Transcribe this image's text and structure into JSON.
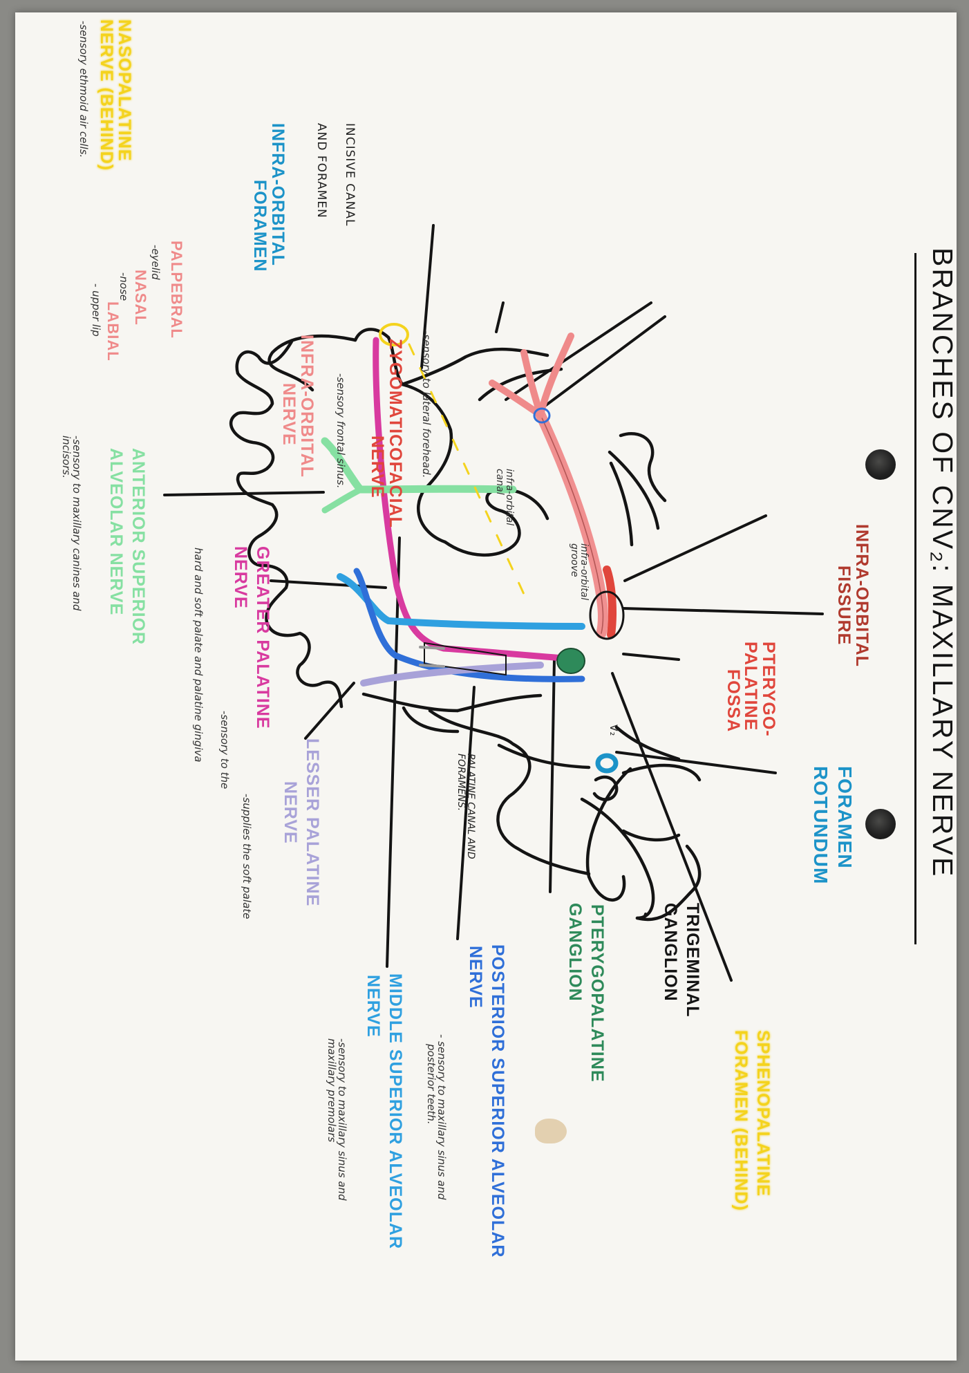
{
  "title": "BRANCHES OF CNV₂: MAXILLARY NERVE",
  "v2_mark": "V₂",
  "colors": {
    "paper": "#f7f6f2",
    "ink": "#141414",
    "infraorbital_nerve": "#ef8a8a",
    "zygomaticofacial": "#e0463c",
    "palatine_magenta": "#d83a9f",
    "posterior_superior_alveolar": "#2f6fd8",
    "middle_superior_alveolar": "#2fa0e0",
    "lesser_palatine": "#a8a2d8",
    "anterior_superior_alveolar": "#86e0a2",
    "pterygopalatine_ganglion": "#2e8a5a",
    "foramen_rotundum": "#1c93c8",
    "nasopalatine": "#f4d31e"
  },
  "labels": {
    "nasopalatine": {
      "line1": "NASOPALATINE",
      "line2": "NERVE (BEHIND)",
      "note": "-sensory ethmoid air cells."
    },
    "incisive": {
      "line1": "INCISIVE CANAL",
      "line2": "AND FORAMEN"
    },
    "infraorbital_foramen": {
      "line1": "INFRA-ORBITAL",
      "line2": "FORAMEN"
    },
    "palpebral": {
      "label": "PALPEBRAL",
      "note": "-eyelid"
    },
    "nasal": {
      "label": "NASAL",
      "note": "-nose"
    },
    "labial": {
      "label": "LABIAL",
      "note": "- upper lip"
    },
    "infraorbital_nerve": {
      "line1": "INFRA-ORBITAL",
      "line2": "NERVE",
      "note": "-sensory frontal sinus."
    },
    "zygomaticofacial": {
      "line1": "ZYGOMATICOFACIAL",
      "line2": "NERVE",
      "note": "-sensory to lateral forehead."
    },
    "infraorbital_fissure": {
      "line1": "INFRA-ORBITAL",
      "line2": "FISSURE"
    },
    "infraorbital_canal": {
      "line1": "infra-orbital",
      "line2": "canal"
    },
    "infraorbital_groove": {
      "line1": "infra-orbital",
      "line2": "groove"
    },
    "pterygopalatine_fossa": {
      "line1": "PTERYGO-",
      "line2": "PALATINE",
      "line3": "FOSSA"
    },
    "foramen_rotundum": {
      "line1": "FORAMEN",
      "line2": "ROTUNDUM"
    },
    "trigeminal_ganglion": {
      "line1": "TRIGEMINAL",
      "line2": "GANGLION"
    },
    "sphenopalatine": {
      "line1": "SPHENOPALATINE",
      "line2": "FORAMEN (BEHIND)"
    },
    "pterygopalatine_ganglion": {
      "line1": "PTERYGOPALATINE",
      "line2": "GANGLION"
    },
    "posterior_superior_alveolar": {
      "line1": "POSTERIOR SUPERIOR ALVEOLAR",
      "line2": "NERVE",
      "note1": "- sensory to maxillary sinus and",
      "note2": "posterior teeth."
    },
    "middle_superior_alveolar": {
      "line1": "MIDDLE SUPERIOR ALVEOLAR",
      "line2": "NERVE",
      "note1": "-sensory to maxillary sinus and",
      "note2": "maxillary premolars"
    },
    "palatine_canal": {
      "line1": "PALATINE CANAL AND",
      "line2": "FORAMENS."
    },
    "lesser_palatine": {
      "line1": "LESSER PALATINE",
      "line2": "NERVE",
      "note": "-supplies the soft palate"
    },
    "greater_palatine": {
      "line1": "GREATER PALATINE",
      "line2": "NERVE",
      "note1": "-sensory to the",
      "note2": "hard and soft palate and palatine gingiva"
    },
    "anterior_superior_alveolar": {
      "line1": "ANTERIOR SUPERIOR",
      "line2": "ALVEOLAR NERVE",
      "note1": "-sensory to maxillary canines and",
      "note2": "incisors."
    }
  }
}
